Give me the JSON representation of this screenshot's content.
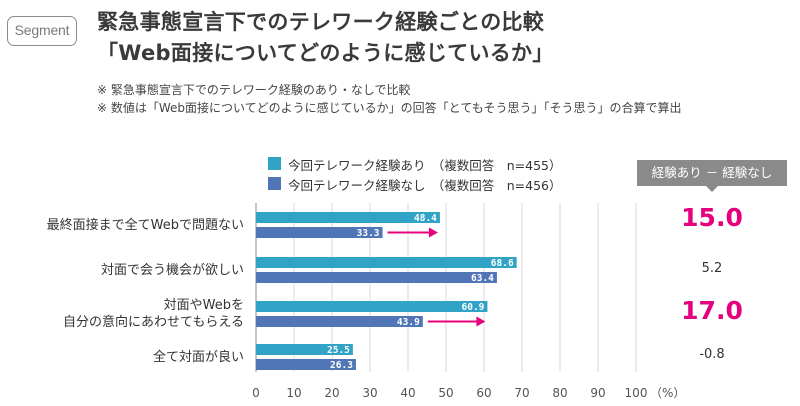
{
  "badge": "Segment",
  "title": {
    "line1": "緊急事態宣言下でのテレワーク経験ごとの比較",
    "line2": "「Web面接についてどのように感じているか」"
  },
  "notes": [
    "※ 緊急事態宣言下でのテレワーク経験のあり・なしで比較",
    "※ 数値は「Web面接についてどのように感じているか」の回答「とてもそう思う」「そう思う」の合算で算出"
  ],
  "diff_header": "経験あり － 経験なし",
  "colors": {
    "with_experience": "#30a3c6",
    "without_experience": "#5176b8",
    "accent": "#e5007e",
    "grid": "#d9d9d9"
  },
  "chart_data": {
    "type": "bar",
    "orientation": "horizontal",
    "categories": [
      [
        "最終面接まで全てWebで問題ない"
      ],
      [
        "対面で会う機会が欲しい"
      ],
      [
        "対面やWebを",
        "自分の意向にあわせてもらえる"
      ],
      [
        "全て対面が良い"
      ]
    ],
    "series": [
      {
        "name": "今回テレワーク経験あり　（複数回答　n=455）",
        "values": [
          48.4,
          68.6,
          60.9,
          25.5
        ]
      },
      {
        "name": "今回テレワーク経験なし　（複数回答　n=456）",
        "values": [
          33.3,
          63.4,
          43.9,
          26.3
        ]
      }
    ],
    "differences": [
      "15.0",
      "5.2",
      "17.0",
      "-0.8"
    ],
    "highlight": [
      true,
      false,
      true,
      false
    ],
    "x_ticks": [
      "0",
      "10",
      "20",
      "30",
      "40",
      "50",
      "60",
      "70",
      "80",
      "90",
      "100"
    ],
    "x_unit": "（%）",
    "xlim": [
      0,
      100
    ]
  }
}
